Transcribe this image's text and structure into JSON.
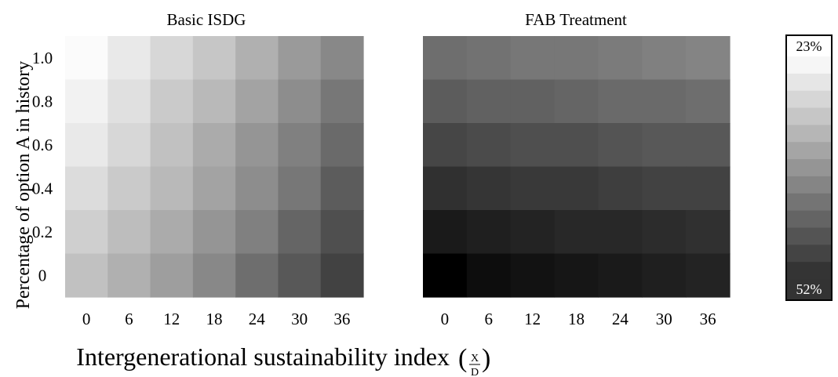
{
  "chart_data": {
    "type": "heatmap",
    "x_ticks": [
      "0",
      "6",
      "12",
      "18",
      "24",
      "30",
      "36"
    ],
    "y_ticks": [
      "1.0",
      "0.8",
      "0.6",
      "0.4",
      "0.2",
      "0"
    ],
    "ylabel": "Percentage of option  A  in history",
    "xlabel": "Intergenerational sustainability index",
    "xlabel_fraction": {
      "numerator": "X",
      "denominator": "D"
    },
    "colorbar": {
      "min_label": "23%",
      "max_label": "52%",
      "min_value": 23,
      "max_value": 52,
      "colors": [
        "#f6f6f6",
        "#e6e6e6",
        "#d6d6d6",
        "#c6c6c6",
        "#b6b6b6",
        "#a5a5a5",
        "#959595",
        "#858585",
        "#747474",
        "#646464",
        "#545454",
        "#444444",
        "#343434"
      ]
    },
    "panels": [
      {
        "title": "Basic ISDG",
        "values": [
          [
            23.5,
            25.5,
            27.5,
            29.5,
            32.0,
            34.5,
            36.5
          ],
          [
            24.5,
            26.5,
            29.0,
            31.0,
            33.5,
            36.0,
            38.5
          ],
          [
            25.5,
            27.5,
            30.0,
            32.5,
            35.0,
            37.5,
            40.0
          ],
          [
            27.0,
            29.0,
            31.0,
            33.5,
            36.0,
            38.5,
            41.5
          ],
          [
            28.5,
            30.5,
            32.5,
            35.0,
            37.5,
            40.5,
            43.0
          ],
          [
            30.0,
            32.0,
            34.0,
            36.5,
            39.5,
            42.0,
            44.5
          ]
        ]
      },
      {
        "title": "FAB Treatment",
        "values": [
          [
            39.5,
            39.0,
            38.5,
            38.5,
            38.0,
            37.5,
            37.0
          ],
          [
            41.5,
            41.0,
            41.0,
            40.5,
            40.0,
            40.0,
            39.5
          ],
          [
            44.0,
            43.5,
            43.0,
            43.0,
            42.5,
            42.0,
            42.0
          ],
          [
            46.5,
            46.0,
            45.5,
            45.5,
            45.0,
            44.5,
            44.5
          ],
          [
            49.0,
            48.5,
            48.0,
            47.5,
            47.5,
            47.0,
            46.5
          ],
          [
            52.0,
            50.5,
            50.0,
            49.5,
            49.0,
            48.5,
            48.0
          ]
        ]
      }
    ]
  }
}
